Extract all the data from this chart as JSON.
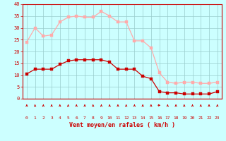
{
  "x": [
    0,
    1,
    2,
    3,
    4,
    5,
    6,
    7,
    8,
    9,
    10,
    11,
    12,
    13,
    14,
    15,
    16,
    17,
    18,
    19,
    20,
    21,
    22,
    23
  ],
  "wind_avg": [
    10.5,
    12.5,
    12.5,
    12.5,
    14.5,
    16,
    16.5,
    16.5,
    16.5,
    16.5,
    15.5,
    12.5,
    12.5,
    12.5,
    9.5,
    8.5,
    3,
    2.5,
    2.5,
    2,
    2,
    2,
    2,
    3
  ],
  "wind_gust": [
    24,
    30,
    26.5,
    27,
    32.5,
    34.5,
    35,
    34.5,
    34.5,
    37,
    35,
    32.5,
    32.5,
    24.5,
    24.5,
    21.5,
    11,
    7,
    6.5,
    7,
    7,
    6.5,
    6.5,
    7
  ],
  "wind_avg_color": "#cc0000",
  "wind_gust_color": "#ffaaaa",
  "bg_color": "#ccffff",
  "grid_color": "#99cccc",
  "axis_color": "#cc0000",
  "xlabel": "Vent moyen/en rafales ( km/h )",
  "xlabel_color": "#cc0000",
  "ylim": [
    0,
    40
  ],
  "yticks": [
    0,
    5,
    10,
    15,
    20,
    25,
    30,
    35,
    40
  ],
  "arrow_color": "#cc0000",
  "marker_size": 2.5,
  "arrow_at_16": "right"
}
